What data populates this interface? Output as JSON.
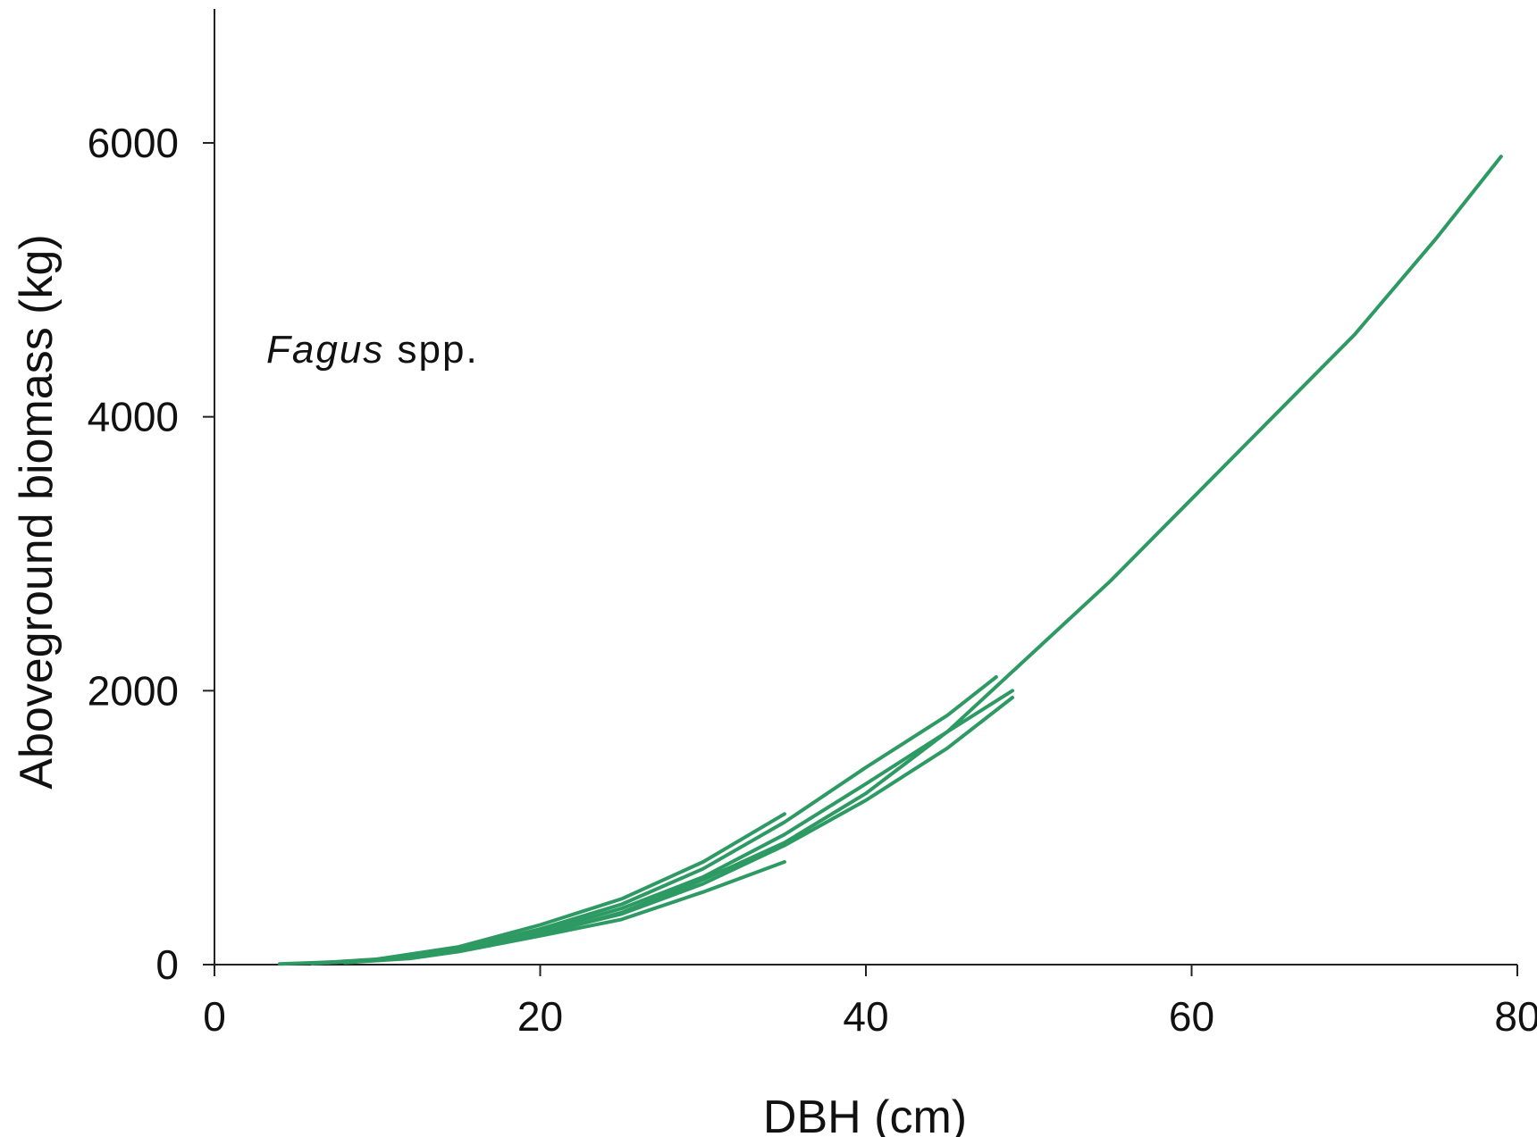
{
  "chart_data": {
    "type": "line",
    "title": "",
    "xlabel": "DBH (cm)",
    "ylabel": "Aboveground biomass (kg)",
    "xlim": [
      0,
      80
    ],
    "ylim": [
      0,
      6000
    ],
    "x_ticks": [
      "0",
      "20",
      "40",
      "60",
      "80"
    ],
    "y_ticks": [
      "0",
      "2000",
      "4000",
      "6000"
    ],
    "annotation": {
      "italic": "Fagus",
      "rest": " spp."
    },
    "grid": false,
    "legend": "none",
    "line_color": "#2e9a63",
    "series": [
      {
        "x": [
          4,
          10,
          15,
          20,
          25,
          30,
          35,
          40,
          45,
          50,
          55,
          60,
          65,
          70,
          75,
          79
        ],
        "y": [
          5,
          30,
          100,
          220,
          380,
          620,
          890,
          1250,
          1700,
          2250,
          2800,
          3400,
          4000,
          4600,
          5300,
          5900
        ]
      },
      {
        "x": [
          6,
          10,
          15,
          20,
          25,
          30,
          35,
          40,
          45,
          48
        ],
        "y": [
          10,
          40,
          115,
          260,
          440,
          700,
          1040,
          1440,
          1820,
          2100
        ]
      },
      {
        "x": [
          6,
          10,
          15,
          20,
          25,
          30,
          35,
          40,
          45,
          49
        ],
        "y": [
          8,
          35,
          105,
          240,
          410,
          640,
          950,
          1320,
          1700,
          2000
        ]
      },
      {
        "x": [
          6,
          10,
          15,
          20,
          25,
          30,
          35,
          40,
          45,
          49
        ],
        "y": [
          8,
          33,
          100,
          225,
          370,
          590,
          870,
          1200,
          1580,
          1950
        ]
      },
      {
        "x": [
          8,
          12,
          15,
          20,
          25,
          30,
          35
        ],
        "y": [
          15,
          45,
          95,
          210,
          330,
          530,
          750
        ]
      },
      {
        "x": [
          10,
          15,
          20,
          25,
          30,
          35
        ],
        "y": [
          40,
          130,
          290,
          480,
          750,
          1100
        ]
      }
    ]
  }
}
